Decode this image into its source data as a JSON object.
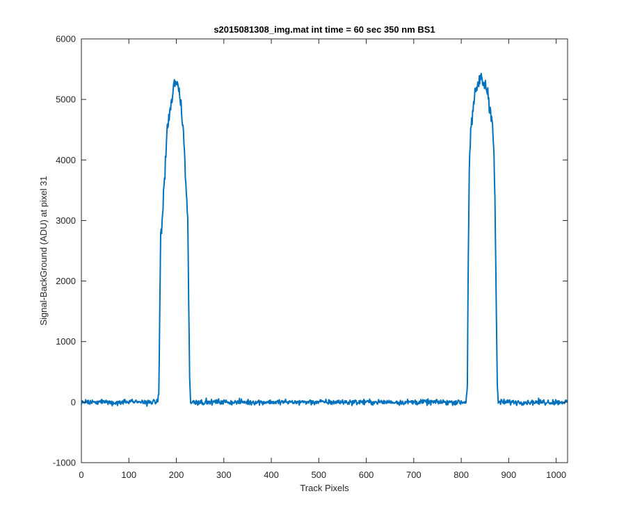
{
  "chart_data": {
    "type": "line",
    "title": "s2015081308_img.mat int time = 60 sec  350 nm BS1",
    "xlabel": "Track Pixels",
    "ylabel": "Signal-BackGround (ADU) at pixel 31",
    "xlim": [
      0,
      1024
    ],
    "ylim": [
      -1000,
      6000
    ],
    "xticks": [
      0,
      100,
      200,
      300,
      400,
      500,
      600,
      700,
      800,
      900,
      1000
    ],
    "yticks": [
      -1000,
      0,
      1000,
      2000,
      3000,
      4000,
      5000,
      6000
    ],
    "grid": false,
    "box": true,
    "series": [
      {
        "color": "#0072BD",
        "profile": [
          [
            0,
            0
          ],
          [
            160,
            0
          ],
          [
            163,
            120
          ],
          [
            165,
            1500
          ],
          [
            167,
            2700
          ],
          [
            170,
            2950
          ],
          [
            175,
            3700
          ],
          [
            180,
            4400
          ],
          [
            185,
            4750
          ],
          [
            190,
            4950
          ],
          [
            195,
            5200
          ],
          [
            198,
            5350
          ],
          [
            200,
            5250
          ],
          [
            205,
            5150
          ],
          [
            210,
            4900
          ],
          [
            215,
            4500
          ],
          [
            220,
            3600
          ],
          [
            224,
            3000
          ],
          [
            226,
            1800
          ],
          [
            228,
            400
          ],
          [
            230,
            0
          ],
          [
            810,
            0
          ],
          [
            813,
            300
          ],
          [
            815,
            2500
          ],
          [
            817,
            3900
          ],
          [
            820,
            4450
          ],
          [
            825,
            4800
          ],
          [
            830,
            5100
          ],
          [
            835,
            5250
          ],
          [
            840,
            5350
          ],
          [
            845,
            5300
          ],
          [
            850,
            5250
          ],
          [
            855,
            5150
          ],
          [
            860,
            4900
          ],
          [
            865,
            4700
          ],
          [
            869,
            4100
          ],
          [
            872,
            2800
          ],
          [
            874,
            1400
          ],
          [
            876,
            300
          ],
          [
            878,
            0
          ],
          [
            1024,
            0
          ]
        ]
      }
    ]
  }
}
